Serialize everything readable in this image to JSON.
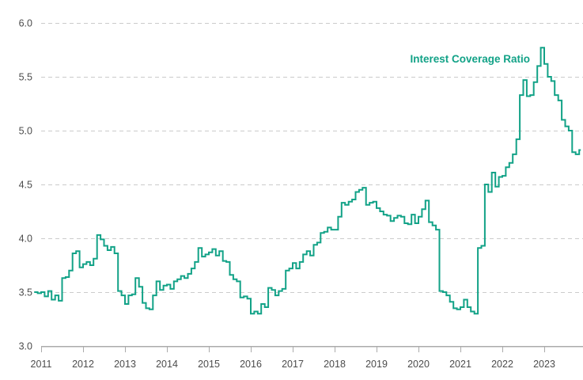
{
  "chart_data": {
    "type": "line",
    "title": "Interest Coverage Ratio",
    "legend_position": "inline-upper-right",
    "line_color": "#12A287",
    "grid_color": "#CBCBCB",
    "axis_color": "#ABABAB",
    "text_color": "#4C4C4C",
    "grid": "horizontal-dashed",
    "ylim": [
      3.0,
      6.0
    ],
    "xlim": [
      2010.83,
      2023.95
    ],
    "y_ticks": [
      3.0,
      3.5,
      4.0,
      4.5,
      5.0,
      5.5,
      6.0
    ],
    "y_tick_labels": [
      "3.0",
      "3.5",
      "4.0",
      "4.5",
      "5.0",
      "5.5",
      "6.0"
    ],
    "x_ticks": [
      2011,
      2012,
      2013,
      2014,
      2015,
      2016,
      2017,
      2018,
      2019,
      2020,
      2021,
      2022,
      2023
    ],
    "x_tick_labels": [
      "2011",
      "2012",
      "2013",
      "2014",
      "2015",
      "2016",
      "2017",
      "2018",
      "2019",
      "2020",
      "2021",
      "2022",
      "2023"
    ],
    "series": [
      {
        "name": "Interest Coverage Ratio",
        "interpolation": "step-after",
        "x_start": 2010.8333,
        "x_step": 0.0833333,
        "values": [
          3.5,
          3.49,
          3.5,
          3.46,
          3.51,
          3.43,
          3.47,
          3.42,
          3.63,
          3.64,
          3.7,
          3.86,
          3.88,
          3.73,
          3.76,
          3.78,
          3.75,
          3.81,
          4.03,
          3.99,
          3.93,
          3.89,
          3.92,
          3.86,
          3.51,
          3.47,
          3.39,
          3.47,
          3.48,
          3.63,
          3.55,
          3.4,
          3.35,
          3.34,
          3.47,
          3.6,
          3.52,
          3.56,
          3.57,
          3.53,
          3.6,
          3.62,
          3.65,
          3.63,
          3.67,
          3.72,
          3.78,
          3.91,
          3.83,
          3.85,
          3.87,
          3.9,
          3.84,
          3.88,
          3.79,
          3.78,
          3.66,
          3.62,
          3.6,
          3.45,
          3.46,
          3.44,
          3.3,
          3.32,
          3.3,
          3.39,
          3.36,
          3.54,
          3.52,
          3.47,
          3.51,
          3.53,
          3.7,
          3.72,
          3.77,
          3.72,
          3.78,
          3.85,
          3.88,
          3.84,
          3.94,
          3.96,
          4.05,
          4.06,
          4.1,
          4.08,
          4.08,
          4.2,
          4.33,
          4.31,
          4.34,
          4.36,
          4.43,
          4.45,
          4.47,
          4.31,
          4.33,
          4.34,
          4.28,
          4.25,
          4.22,
          4.21,
          4.16,
          4.19,
          4.21,
          4.2,
          4.14,
          4.13,
          4.22,
          4.14,
          4.2,
          4.27,
          4.35,
          4.15,
          4.12,
          4.08,
          3.51,
          3.5,
          3.47,
          3.41,
          3.35,
          3.34,
          3.36,
          3.43,
          3.36,
          3.32,
          3.3,
          3.91,
          3.93,
          4.5,
          4.43,
          4.61,
          4.48,
          4.57,
          4.58,
          4.66,
          4.7,
          4.78,
          4.92,
          5.33,
          5.47,
          5.32,
          5.33,
          5.45,
          5.6,
          5.77,
          5.62,
          5.5,
          5.46,
          5.33,
          5.28,
          5.1,
          5.04,
          5.0,
          4.8,
          4.78,
          4.82
        ]
      }
    ]
  }
}
